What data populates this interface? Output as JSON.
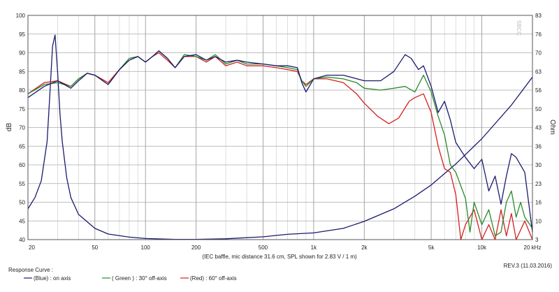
{
  "chart_data": {
    "type": "line",
    "watermark": "SBCC",
    "caption": "(IEC baffle, mic distance 31.6 cm, SPL shown for 2.83 V / 1 m)",
    "revision": "REV.3 (11.03.2016)",
    "legend_title": "Response Curve :",
    "legend": [
      {
        "label": "(Blue) : on axis",
        "color": "#1a1a6e"
      },
      {
        "label": "( Green ) : 30° off-axis",
        "color": "#2a8a2a"
      },
      {
        "label": "(Red) : 60° off-axis",
        "color": "#d42020"
      }
    ],
    "left_axis": {
      "label": "dB",
      "ylim": [
        40,
        100
      ],
      "ticks": [
        "40",
        "45",
        "50",
        "55",
        "60",
        "65",
        "70",
        "75",
        "80",
        "85",
        "90",
        "95",
        "100"
      ]
    },
    "right_axis": {
      "label": "Ohm",
      "ylim": [
        3,
        83
      ],
      "ticks": [
        "3",
        "10",
        "16",
        "23",
        "30",
        "36",
        "43",
        "50",
        "56",
        "63",
        "70",
        "76",
        "83"
      ]
    },
    "x_axis": {
      "scale": "log",
      "xlim": [
        20,
        20000
      ],
      "ticks": [
        {
          "value": 20,
          "label": "20"
        },
        {
          "value": 50,
          "label": "50"
        },
        {
          "value": 100,
          "label": "100"
        },
        {
          "value": 200,
          "label": "200"
        },
        {
          "value": 500,
          "label": "500"
        },
        {
          "value": 1000,
          "label": "1k"
        },
        {
          "value": 2000,
          "label": "2k"
        },
        {
          "value": 5000,
          "label": "5k"
        },
        {
          "value": 10000,
          "label": "10k"
        },
        {
          "value": 20000,
          "label": "20 kHz"
        }
      ]
    },
    "grid": true,
    "series": [
      {
        "name": "(Blue) : on axis",
        "color": "#1a1a6e",
        "axis": "left",
        "points": [
          [
            20,
            78
          ],
          [
            25,
            81
          ],
          [
            30,
            82.5
          ],
          [
            36,
            80.5
          ],
          [
            40,
            82.5
          ],
          [
            45,
            84.5
          ],
          [
            50,
            84
          ],
          [
            60,
            81.5
          ],
          [
            70,
            85.5
          ],
          [
            80,
            88
          ],
          [
            90,
            89
          ],
          [
            100,
            87.5
          ],
          [
            110,
            89
          ],
          [
            120,
            90.5
          ],
          [
            135,
            88.5
          ],
          [
            150,
            86
          ],
          [
            170,
            89
          ],
          [
            200,
            89.5
          ],
          [
            230,
            88
          ],
          [
            260,
            89
          ],
          [
            300,
            87.5
          ],
          [
            350,
            88
          ],
          [
            400,
            87.5
          ],
          [
            500,
            87
          ],
          [
            600,
            86.5
          ],
          [
            700,
            86.5
          ],
          [
            800,
            86
          ],
          [
            850,
            82
          ],
          [
            900,
            79.5
          ],
          [
            1000,
            83
          ],
          [
            1200,
            84
          ],
          [
            1500,
            84
          ],
          [
            2000,
            82.5
          ],
          [
            2500,
            82.5
          ],
          [
            3000,
            85
          ],
          [
            3500,
            89.5
          ],
          [
            3800,
            88.5
          ],
          [
            4200,
            85.5
          ],
          [
            4500,
            86.5
          ],
          [
            5000,
            81
          ],
          [
            5500,
            74
          ],
          [
            6000,
            77
          ],
          [
            6500,
            72
          ],
          [
            7000,
            66
          ],
          [
            8000,
            62
          ],
          [
            9000,
            59
          ],
          [
            10000,
            61.5
          ],
          [
            11000,
            53
          ],
          [
            12000,
            57
          ],
          [
            13000,
            49.5
          ],
          [
            14000,
            57
          ],
          [
            15000,
            63
          ],
          [
            16000,
            62
          ],
          [
            18000,
            58
          ],
          [
            20000,
            42
          ]
        ]
      },
      {
        "name": "( Green ) : 30° off-axis",
        "color": "#2a8a2a",
        "axis": "left",
        "points": [
          [
            20,
            79
          ],
          [
            25,
            81.5
          ],
          [
            30,
            82
          ],
          [
            36,
            81
          ],
          [
            40,
            83
          ],
          [
            45,
            84.5
          ],
          [
            50,
            84
          ],
          [
            60,
            81.5
          ],
          [
            70,
            85.5
          ],
          [
            80,
            88.5
          ],
          [
            90,
            89
          ],
          [
            100,
            87.5
          ],
          [
            110,
            89
          ],
          [
            120,
            90.5
          ],
          [
            135,
            88.5
          ],
          [
            150,
            86
          ],
          [
            170,
            89.5
          ],
          [
            200,
            89
          ],
          [
            230,
            88
          ],
          [
            260,
            89.5
          ],
          [
            300,
            87
          ],
          [
            350,
            88
          ],
          [
            400,
            87
          ],
          [
            500,
            87
          ],
          [
            600,
            86.5
          ],
          [
            700,
            86
          ],
          [
            800,
            85.5
          ],
          [
            850,
            82.5
          ],
          [
            900,
            81
          ],
          [
            1000,
            83
          ],
          [
            1200,
            83.5
          ],
          [
            1500,
            83
          ],
          [
            1800,
            82
          ],
          [
            2000,
            80.5
          ],
          [
            2500,
            80
          ],
          [
            3000,
            80.5
          ],
          [
            3500,
            81
          ],
          [
            4000,
            79.5
          ],
          [
            4500,
            84
          ],
          [
            5000,
            79.5
          ],
          [
            5500,
            73
          ],
          [
            6000,
            68
          ],
          [
            6500,
            60
          ],
          [
            7000,
            58
          ],
          [
            8000,
            51
          ],
          [
            8500,
            42
          ],
          [
            9000,
            50
          ],
          [
            10000,
            44
          ],
          [
            11000,
            48
          ],
          [
            12000,
            41
          ],
          [
            13000,
            42
          ],
          [
            14000,
            50
          ],
          [
            15000,
            53
          ],
          [
            16000,
            46
          ],
          [
            17000,
            50
          ],
          [
            18000,
            46
          ],
          [
            20000,
            43
          ]
        ]
      },
      {
        "name": "(Red) : 60° off-axis",
        "color": "#d42020",
        "axis": "left",
        "points": [
          [
            20,
            79
          ],
          [
            25,
            82
          ],
          [
            30,
            82.5
          ],
          [
            36,
            81
          ],
          [
            40,
            83
          ],
          [
            45,
            84.5
          ],
          [
            50,
            84
          ],
          [
            60,
            82
          ],
          [
            70,
            85.5
          ],
          [
            80,
            88
          ],
          [
            90,
            89
          ],
          [
            100,
            87.5
          ],
          [
            110,
            89
          ],
          [
            120,
            90
          ],
          [
            135,
            88
          ],
          [
            150,
            86
          ],
          [
            170,
            89
          ],
          [
            200,
            89
          ],
          [
            230,
            87.5
          ],
          [
            260,
            89
          ],
          [
            300,
            86.5
          ],
          [
            350,
            87.5
          ],
          [
            400,
            86.5
          ],
          [
            500,
            86.5
          ],
          [
            600,
            86
          ],
          [
            700,
            85.5
          ],
          [
            800,
            85
          ],
          [
            850,
            82.5
          ],
          [
            900,
            81.5
          ],
          [
            1000,
            83
          ],
          [
            1200,
            83
          ],
          [
            1500,
            82
          ],
          [
            1800,
            79
          ],
          [
            2000,
            76.5
          ],
          [
            2400,
            73
          ],
          [
            2800,
            71
          ],
          [
            3200,
            72.5
          ],
          [
            3700,
            77
          ],
          [
            4000,
            78
          ],
          [
            4500,
            79
          ],
          [
            5000,
            74
          ],
          [
            5500,
            65
          ],
          [
            6000,
            59
          ],
          [
            6500,
            58
          ],
          [
            7000,
            52
          ],
          [
            7500,
            40
          ],
          [
            8000,
            44
          ],
          [
            9000,
            48
          ],
          [
            10000,
            40
          ],
          [
            11000,
            44
          ],
          [
            12000,
            40
          ],
          [
            13000,
            48
          ],
          [
            14000,
            41
          ],
          [
            15000,
            47
          ],
          [
            16000,
            40
          ],
          [
            18000,
            45
          ],
          [
            20000,
            40
          ]
        ]
      },
      {
        "name": "Ohm",
        "color": "#1a1a6e",
        "axis": "right",
        "points": [
          [
            20,
            14
          ],
          [
            22,
            18
          ],
          [
            24,
            24
          ],
          [
            26,
            38
          ],
          [
            27,
            55
          ],
          [
            28,
            72
          ],
          [
            29,
            76
          ],
          [
            30,
            63
          ],
          [
            31,
            48
          ],
          [
            32,
            38
          ],
          [
            34,
            25
          ],
          [
            36,
            18
          ],
          [
            40,
            12
          ],
          [
            50,
            7
          ],
          [
            60,
            5
          ],
          [
            80,
            3.9
          ],
          [
            100,
            3.4
          ],
          [
            150,
            3.1
          ],
          [
            200,
            3.1
          ],
          [
            300,
            3.3
          ],
          [
            500,
            4
          ],
          [
            700,
            4.9
          ],
          [
            1000,
            5.4
          ],
          [
            1500,
            7
          ],
          [
            2000,
            9.5
          ],
          [
            3000,
            14
          ],
          [
            4000,
            18.5
          ],
          [
            5000,
            22.5
          ],
          [
            7000,
            30
          ],
          [
            10000,
            39
          ],
          [
            15000,
            51
          ],
          [
            20000,
            61
          ]
        ]
      }
    ]
  }
}
